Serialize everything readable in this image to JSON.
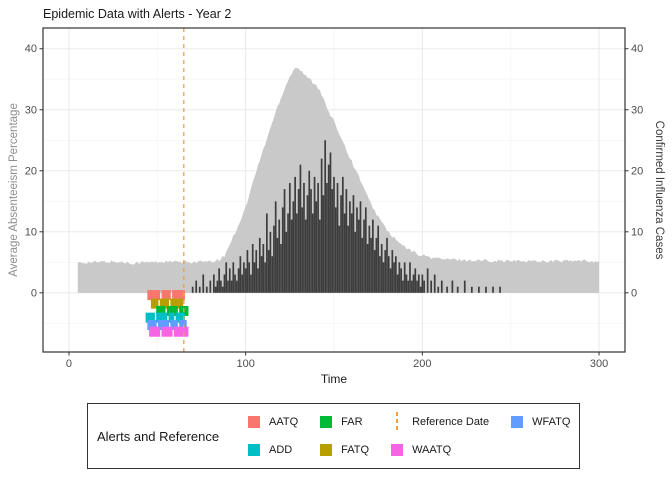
{
  "chart_data": {
    "type": "area+bar",
    "title": "Epidemic Data with Alerts - Year 2",
    "xlabel": "Time",
    "ylabel_left": "Average Absenteeism Percentage",
    "ylabel_right": "Confirmed Influenza Cases",
    "x_ticks": [
      0,
      100,
      200,
      300
    ],
    "x_minor": [
      50,
      150,
      250
    ],
    "y_ticks": [
      0,
      10,
      20,
      30,
      40
    ],
    "y_minor": [
      -5,
      5,
      15,
      25,
      35
    ],
    "xlim": [
      -14.7,
      314.7
    ],
    "ylim": [
      -9.7,
      43.4
    ],
    "grid": true,
    "reference_date": 65,
    "series": {
      "absenteeism": {
        "name": "Average Absenteeism Percentage",
        "axis": "left",
        "kind": "area",
        "points": [
          [
            5,
            5
          ],
          [
            15,
            5
          ],
          [
            25,
            5.1
          ],
          [
            35,
            4.9
          ],
          [
            45,
            5
          ],
          [
            55,
            5.1
          ],
          [
            65,
            5
          ],
          [
            75,
            5.1
          ],
          [
            80,
            5
          ],
          [
            85,
            5.4
          ],
          [
            88,
            6
          ],
          [
            91,
            8
          ],
          [
            95,
            10.5
          ],
          [
            100,
            14
          ],
          [
            105,
            19
          ],
          [
            110,
            23.5
          ],
          [
            114,
            27
          ],
          [
            118,
            30.5
          ],
          [
            122,
            33.5
          ],
          [
            125,
            35.5
          ],
          [
            128,
            37
          ],
          [
            131,
            36.5
          ],
          [
            134,
            35.5
          ],
          [
            137,
            34.8
          ],
          [
            140,
            34
          ],
          [
            142,
            33.3
          ],
          [
            145,
            31
          ],
          [
            148,
            29
          ],
          [
            151,
            27.5
          ],
          [
            154,
            25.5
          ],
          [
            157,
            23.5
          ],
          [
            160,
            21.5
          ],
          [
            165,
            18.5
          ],
          [
            170,
            15
          ],
          [
            176,
            12
          ],
          [
            182,
            9.5
          ],
          [
            188,
            7.9
          ],
          [
            194,
            6.8
          ],
          [
            199,
            6.2
          ],
          [
            205,
            5.8
          ],
          [
            212,
            5.5
          ],
          [
            220,
            5.4
          ],
          [
            230,
            5.3
          ],
          [
            240,
            5.3
          ],
          [
            250,
            5.2
          ],
          [
            260,
            5.2
          ],
          [
            270,
            5.2
          ],
          [
            280,
            5.2
          ],
          [
            290,
            5.2
          ],
          [
            300,
            5.2
          ]
        ]
      },
      "influenza": {
        "name": "Confirmed Influenza Cases",
        "axis": "right",
        "kind": "bar",
        "bars": [
          [
            70,
            1
          ],
          [
            72,
            2
          ],
          [
            74,
            1
          ],
          [
            76,
            3
          ],
          [
            78,
            1
          ],
          [
            80,
            2
          ],
          [
            82,
            3
          ],
          [
            83,
            1
          ],
          [
            84,
            2
          ],
          [
            85,
            4
          ],
          [
            86,
            2
          ],
          [
            87,
            1
          ],
          [
            88,
            3
          ],
          [
            89,
            5
          ],
          [
            90,
            2
          ],
          [
            91,
            4
          ],
          [
            92,
            2
          ],
          [
            93,
            5
          ],
          [
            94,
            3
          ],
          [
            95,
            2
          ],
          [
            96,
            4
          ],
          [
            97,
            6
          ],
          [
            98,
            3
          ],
          [
            99,
            5
          ],
          [
            100,
            4
          ],
          [
            101,
            7
          ],
          [
            102,
            5
          ],
          [
            103,
            3
          ],
          [
            104,
            8
          ],
          [
            105,
            5
          ],
          [
            106,
            7
          ],
          [
            107,
            4
          ],
          [
            108,
            9
          ],
          [
            109,
            6
          ],
          [
            110,
            8
          ],
          [
            111,
            5
          ],
          [
            112,
            13
          ],
          [
            113,
            7
          ],
          [
            114,
            10
          ],
          [
            115,
            6
          ],
          [
            116,
            11
          ],
          [
            117,
            15
          ],
          [
            118,
            9
          ],
          [
            119,
            12
          ],
          [
            120,
            8
          ],
          [
            121,
            14
          ],
          [
            122,
            17
          ],
          [
            123,
            10
          ],
          [
            124,
            13
          ],
          [
            125,
            18
          ],
          [
            126,
            12
          ],
          [
            127,
            15
          ],
          [
            128,
            19
          ],
          [
            129,
            13
          ],
          [
            130,
            17
          ],
          [
            131,
            21
          ],
          [
            132,
            14
          ],
          [
            133,
            18
          ],
          [
            134,
            12
          ],
          [
            135,
            16
          ],
          [
            136,
            20
          ],
          [
            137,
            17
          ],
          [
            138,
            13
          ],
          [
            139,
            19
          ],
          [
            140,
            15
          ],
          [
            141,
            18
          ],
          [
            142,
            12
          ],
          [
            143,
            22
          ],
          [
            144,
            16
          ],
          [
            145,
            25
          ],
          [
            146,
            18
          ],
          [
            147,
            21
          ],
          [
            148,
            23
          ],
          [
            149,
            17
          ],
          [
            150,
            19
          ],
          [
            151,
            14
          ],
          [
            152,
            18
          ],
          [
            153,
            11
          ],
          [
            154,
            16
          ],
          [
            155,
            19
          ],
          [
            156,
            13
          ],
          [
            157,
            17
          ],
          [
            158,
            11
          ],
          [
            159,
            15
          ],
          [
            160,
            13
          ],
          [
            161,
            16
          ],
          [
            162,
            10
          ],
          [
            163,
            14
          ],
          [
            164,
            12
          ],
          [
            165,
            15
          ],
          [
            166,
            9
          ],
          [
            167,
            12
          ],
          [
            168,
            14
          ],
          [
            169,
            8
          ],
          [
            170,
            11
          ],
          [
            171,
            9
          ],
          [
            172,
            12
          ],
          [
            173,
            7
          ],
          [
            174,
            9
          ],
          [
            175,
            11
          ],
          [
            176,
            6
          ],
          [
            177,
            8
          ],
          [
            178,
            5
          ],
          [
            179,
            7
          ],
          [
            180,
            9
          ],
          [
            181,
            6
          ],
          [
            182,
            4
          ],
          [
            183,
            7
          ],
          [
            184,
            5
          ],
          [
            185,
            6
          ],
          [
            186,
            3
          ],
          [
            187,
            5
          ],
          [
            188,
            4
          ],
          [
            189,
            2
          ],
          [
            190,
            5
          ],
          [
            191,
            3
          ],
          [
            192,
            2
          ],
          [
            193,
            5
          ],
          [
            194,
            2
          ],
          [
            195,
            3
          ],
          [
            196,
            4
          ],
          [
            197,
            2
          ],
          [
            198,
            3
          ],
          [
            199,
            1
          ],
          [
            200,
            3
          ],
          [
            201,
            2
          ],
          [
            203,
            4
          ],
          [
            205,
            2
          ],
          [
            207,
            3
          ],
          [
            209,
            1
          ],
          [
            211,
            2
          ],
          [
            214,
            1
          ],
          [
            217,
            2
          ],
          [
            220,
            1
          ],
          [
            224,
            2
          ],
          [
            228,
            1
          ],
          [
            232,
            1
          ],
          [
            236,
            1
          ],
          [
            240,
            1
          ],
          [
            244,
            1
          ]
        ]
      }
    },
    "alerts": [
      {
        "label": "AATQ",
        "color": "#F8766D",
        "y": -0.7,
        "times": [
          45,
          46,
          47,
          48,
          49,
          50,
          51,
          53,
          54,
          55,
          56,
          57,
          59,
          60,
          61,
          62,
          63,
          64,
          65
        ]
      },
      {
        "label": "FATQ",
        "color": "#B79F00",
        "y": -2.1,
        "times": [
          47,
          48,
          49,
          50,
          52,
          53,
          54,
          55,
          56,
          58,
          59,
          60,
          61,
          62,
          63,
          64
        ]
      },
      {
        "label": "FAR",
        "color": "#00BA38",
        "y": -3.3,
        "times": [
          50,
          51,
          52,
          53,
          54,
          56,
          57,
          58,
          59,
          60,
          61,
          63,
          64,
          65,
          66,
          67
        ]
      },
      {
        "label": "ADD",
        "color": "#00BFC4",
        "y": -4.4,
        "times": [
          44,
          45,
          46,
          47,
          48,
          50,
          51,
          52,
          53,
          54,
          55,
          57,
          58,
          59,
          61,
          62,
          63,
          64,
          65
        ]
      },
      {
        "label": "WFATQ",
        "color": "#619CFF",
        "y": -5.6,
        "times": [
          45,
          46,
          47,
          48,
          49,
          51,
          52,
          53,
          54,
          55,
          56,
          58,
          59,
          60,
          61,
          63,
          64,
          65,
          66
        ]
      },
      {
        "label": "WAATQ",
        "color": "#F564E3",
        "y": -6.7,
        "times": [
          46,
          47,
          48,
          49,
          50,
          51,
          53,
          54,
          55,
          56,
          57,
          58,
          60,
          61,
          62,
          63,
          64,
          65,
          66,
          67
        ]
      }
    ]
  },
  "legend": {
    "title": "Alerts and Reference",
    "position": "bottom",
    "items": [
      {
        "label": "AATQ",
        "color": "#F8766D",
        "type": "square"
      },
      {
        "label": "ADD",
        "color": "#00BFC4",
        "type": "square"
      },
      {
        "label": "FAR",
        "color": "#00BA38",
        "type": "square"
      },
      {
        "label": "FATQ",
        "color": "#B79F00",
        "type": "square"
      },
      {
        "label": "Reference Date",
        "color": "#F2A13C",
        "type": "dashed-line"
      },
      {
        "label": "WAATQ",
        "color": "#F564E3",
        "type": "square"
      },
      {
        "label": "WFATQ",
        "color": "#619CFF",
        "type": "square"
      }
    ]
  },
  "colors": {
    "area": "#c9c9c9",
    "bars": "#3d3d3d",
    "reference": "#F2A13C",
    "panel_border": "#333333",
    "grid_major": "#ebebeb",
    "grid_minor": "#f5f5f5",
    "axis_text": "#4d4d4d",
    "tick_mark": "#333333"
  }
}
